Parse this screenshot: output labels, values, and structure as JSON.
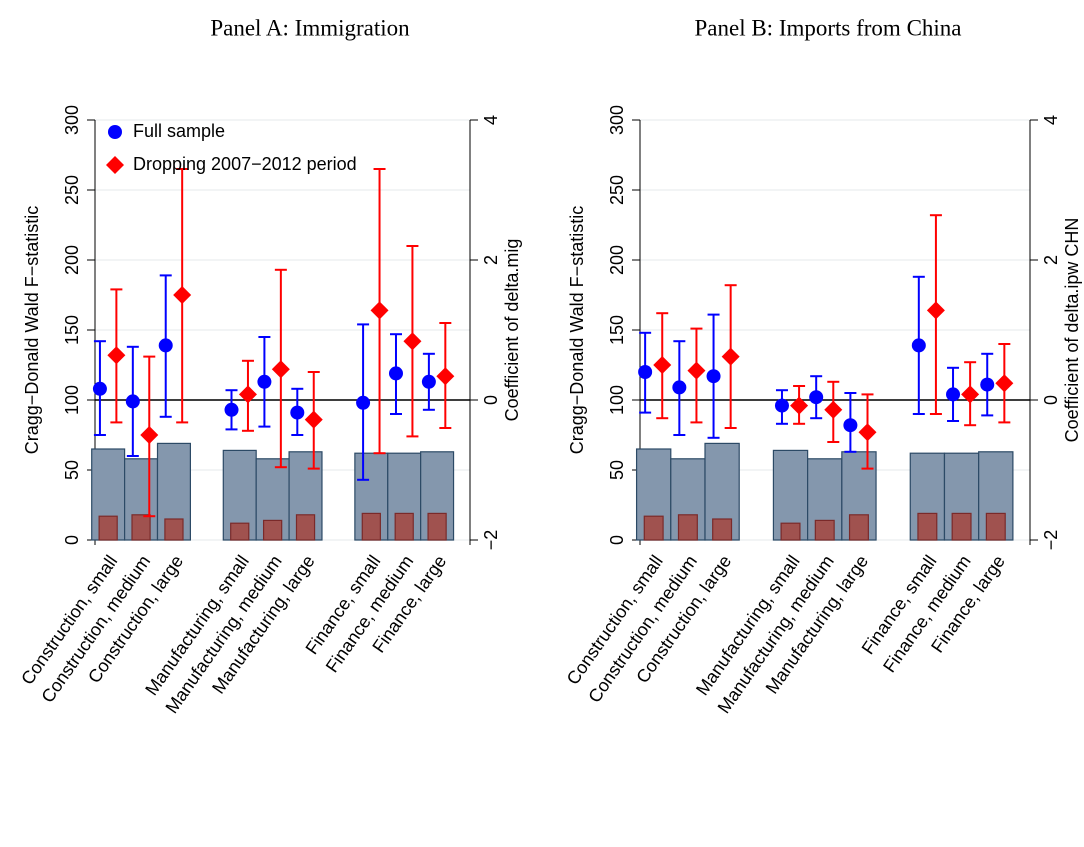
{
  "chart_data": [
    {
      "type": "combo",
      "title": "Panel A: Immigration",
      "ylabel": "Cragg−Donald Wald F−statistic",
      "y2label": "Coefficient of delta.mig",
      "categories": [
        "Construction, small",
        "Construction, medium",
        "Construction, large",
        "Manufacturing, small",
        "Manufacturing, medium",
        "Manufacturing, large",
        "Finance, small",
        "Finance, medium",
        "Finance, large"
      ],
      "ylim": [
        0,
        300
      ],
      "yticks": [
        0,
        50,
        100,
        150,
        200,
        250,
        300
      ],
      "y2lim": [
        -2,
        4
      ],
      "y2ticks": [
        {
          "value": -2,
          "label": "−2"
        },
        0,
        2,
        4
      ],
      "grid": true,
      "hline": {
        "axis": "y2",
        "value": 0
      },
      "legend": "top-left",
      "bars": [
        {
          "color": "#8497ad",
          "values": [
            65,
            58,
            69,
            64,
            58,
            63,
            62,
            62,
            63
          ]
        },
        {
          "color": "#a0524f",
          "values": [
            17,
            18,
            15,
            12,
            14,
            18,
            19,
            19,
            19
          ]
        }
      ],
      "series": [
        {
          "name": "Full sample",
          "color": "#0000ff",
          "marker": "circle",
          "axis": "y2",
          "values": [
            0.16,
            -0.02,
            0.78,
            -0.14,
            0.26,
            -0.18,
            -0.04,
            0.38,
            0.26
          ],
          "lower": [
            -0.5,
            -0.8,
            -0.24,
            -0.42,
            -0.38,
            -0.5,
            -1.14,
            -0.2,
            -0.14
          ],
          "upper": [
            0.84,
            0.76,
            1.78,
            0.14,
            0.9,
            0.16,
            1.08,
            0.94,
            0.66
          ]
        },
        {
          "name": "Dropping 2007−2012 period",
          "color": "#ff0000",
          "marker": "diamond",
          "axis": "y2",
          "values": [
            0.64,
            -0.5,
            1.5,
            0.08,
            0.44,
            -0.28,
            1.28,
            0.84,
            0.34
          ],
          "lower": [
            -0.32,
            -1.66,
            -0.32,
            -0.44,
            -0.96,
            -0.98,
            -0.76,
            -0.52,
            -0.4
          ],
          "upper": [
            1.58,
            0.62,
            3.3,
            0.56,
            1.86,
            0.4,
            3.3,
            2.2,
            1.1
          ]
        }
      ]
    },
    {
      "type": "combo",
      "title": "Panel B: Imports from China",
      "ylabel": "Cragg−Donald Wald F−statistic",
      "y2label": "Coefficient of delta.ipw CHN",
      "categories": [
        "Construction, small",
        "Construction, medium",
        "Construction, large",
        "Manufacturing, small",
        "Manufacturing, medium",
        "Manufacturing, large",
        "Finance, small",
        "Finance, medium",
        "Finance, large"
      ],
      "ylim": [
        0,
        300
      ],
      "yticks": [
        0,
        50,
        100,
        150,
        200,
        250,
        300
      ],
      "y2lim": [
        -2,
        4
      ],
      "y2ticks": [
        {
          "value": -2,
          "label": "−2"
        },
        0,
        2,
        4
      ],
      "grid": true,
      "hline": {
        "axis": "y2",
        "value": 0
      },
      "bars": [
        {
          "color": "#8497ad",
          "values": [
            65,
            58,
            69,
            64,
            58,
            63,
            62,
            62,
            63
          ]
        },
        {
          "color": "#a0524f",
          "values": [
            17,
            18,
            15,
            12,
            14,
            18,
            19,
            19,
            19
          ]
        }
      ],
      "series": [
        {
          "color": "#0000ff",
          "marker": "circle",
          "axis": "y2",
          "values": [
            0.4,
            0.18,
            0.34,
            -0.08,
            0.04,
            -0.36,
            0.78,
            0.08,
            0.22
          ],
          "lower": [
            -0.18,
            -0.5,
            -0.54,
            -0.34,
            -0.26,
            -0.74,
            -0.2,
            -0.3,
            -0.22
          ],
          "upper": [
            0.96,
            0.84,
            1.22,
            0.14,
            0.34,
            0.1,
            1.76,
            0.46,
            0.66
          ]
        },
        {
          "color": "#ff0000",
          "marker": "diamond",
          "axis": "y2",
          "values": [
            0.5,
            0.42,
            0.62,
            -0.08,
            -0.14,
            -0.46,
            1.28,
            0.08,
            0.24
          ],
          "lower": [
            -0.26,
            -0.32,
            -0.4,
            -0.34,
            -0.6,
            -0.98,
            -0.2,
            -0.36,
            -0.32
          ],
          "upper": [
            1.24,
            1.02,
            1.64,
            0.2,
            0.26,
            0.08,
            2.64,
            0.54,
            0.8
          ]
        }
      ]
    }
  ]
}
